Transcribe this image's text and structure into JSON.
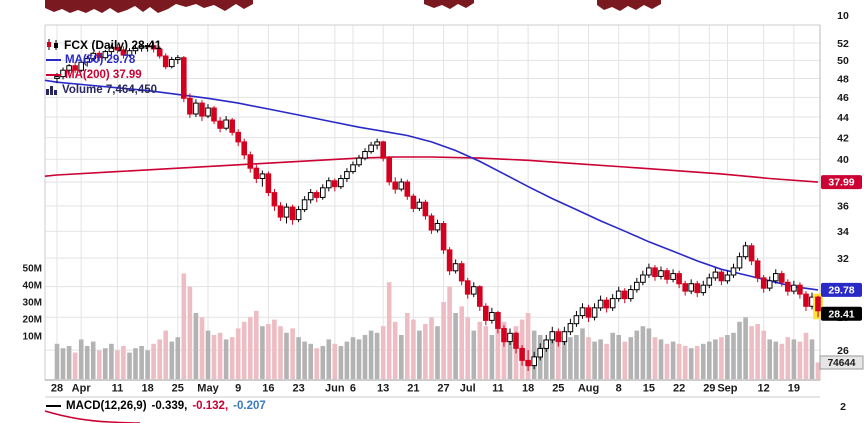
{
  "legend": {
    "symbol": "FCX (Daily) 28.41",
    "ma50": "MA(50) 29.78",
    "ma200": "MA(200) 37.99",
    "volume": "Volume 7,464,450"
  },
  "macd": {
    "label": "MACD(12,26,9)",
    "v1": "-0.339,",
    "v2": "-0.132,",
    "v3": "-0.207"
  },
  "axis": {
    "top_label": "10",
    "price_labels": [
      52,
      50,
      48,
      46,
      44,
      42,
      40,
      38,
      36,
      34,
      32,
      30,
      28,
      26
    ],
    "volume_labels": [
      "50M",
      "40M",
      "30M",
      "20M",
      "10M"
    ],
    "macd_scale_label": "2",
    "last_volume_label": "74644"
  },
  "price_boxes": {
    "ma200": "37.99",
    "ma50": "29.78",
    "last": "28.41"
  },
  "x_axis": {
    "labels": [
      {
        "i": 0,
        "label": "28"
      },
      {
        "i": 4,
        "label": "Apr"
      },
      {
        "i": 10,
        "label": "11"
      },
      {
        "i": 15,
        "label": "18"
      },
      {
        "i": 20,
        "label": "25"
      },
      {
        "i": 25,
        "label": "May"
      },
      {
        "i": 30,
        "label": "9"
      },
      {
        "i": 35,
        "label": "16"
      },
      {
        "i": 40,
        "label": "23"
      },
      {
        "i": 46,
        "label": "Jun"
      },
      {
        "i": 49,
        "label": "6"
      },
      {
        "i": 54,
        "label": "13"
      },
      {
        "i": 59,
        "label": "21"
      },
      {
        "i": 64,
        "label": "27"
      },
      {
        "i": 68,
        "label": "Jul"
      },
      {
        "i": 73,
        "label": "11"
      },
      {
        "i": 78,
        "label": "18"
      },
      {
        "i": 83,
        "label": "25"
      },
      {
        "i": 88,
        "label": "Aug"
      },
      {
        "i": 93,
        "label": "8"
      },
      {
        "i": 98,
        "label": "15"
      },
      {
        "i": 103,
        "label": "22"
      },
      {
        "i": 108,
        "label": "29"
      },
      {
        "i": 111,
        "label": "Sep"
      },
      {
        "i": 117,
        "label": "12"
      },
      {
        "i": 122,
        "label": "19"
      }
    ]
  },
  "colors": {
    "candle_down": "#d4001f",
    "candle_up_fill": "#ffffff",
    "candle_up_stroke": "#000000",
    "ma50": "#2929c8",
    "ma200": "#cc0033",
    "volume_up": "#b3b3b3",
    "volume_down": "#eebcc3",
    "grid": "#e3e3e3",
    "axis_text": "#1a1a1a",
    "legend_volume": "#27275e",
    "last_box_bg": "#000000",
    "ma50_box_bg": "#2929c8",
    "ma200_box_bg": "#cc0033",
    "marker_yellow": "#ffe13a",
    "top_fragment": "#7a1a20",
    "macd_value1": "#000000",
    "macd_value2": "#cc0033",
    "macd_value3": "#3a7abf"
  },
  "chart_data": {
    "type": "candlestick",
    "title": "FCX (Daily) with MA(50), MA(200), Volume and MACD(12,26,9)",
    "symbol": "FCX",
    "timeframe": "Daily",
    "last_price": 28.41,
    "ma50_last": 29.78,
    "ma200_last": 37.99,
    "volume_current": 7464450,
    "price_scale": "log",
    "ylim": [
      25.5,
      53
    ],
    "volume_axis_m": [
      10,
      20,
      30,
      40,
      50
    ],
    "macd_values": [
      -0.339,
      -0.132,
      -0.207
    ],
    "candles": [
      [
        48.0,
        48.6,
        47.5,
        48.2,
        16
      ],
      [
        48.2,
        49.2,
        47.9,
        48.9,
        14
      ],
      [
        48.9,
        49.6,
        48.3,
        49.4,
        15
      ],
      [
        49.4,
        49.8,
        48.6,
        48.9,
        12
      ],
      [
        48.9,
        50.0,
        48.7,
        49.8,
        18
      ],
      [
        49.8,
        50.5,
        49.3,
        50.2,
        15
      ],
      [
        50.2,
        51.0,
        49.9,
        50.8,
        17
      ],
      [
        50.8,
        51.1,
        49.9,
        50.3,
        13
      ],
      [
        50.3,
        51.2,
        50.0,
        51.0,
        14
      ],
      [
        51.0,
        51.8,
        50.6,
        51.5,
        16
      ],
      [
        51.5,
        51.9,
        50.8,
        51.2,
        13
      ],
      [
        51.2,
        51.6,
        50.2,
        50.6,
        15
      ],
      [
        50.6,
        51.4,
        50.4,
        51.1,
        12
      ],
      [
        51.1,
        51.7,
        50.7,
        51.4,
        14
      ],
      [
        51.4,
        51.9,
        51.0,
        51.6,
        15
      ],
      [
        51.6,
        52.0,
        51.0,
        51.7,
        13
      ],
      [
        51.7,
        52.1,
        50.9,
        51.3,
        16
      ],
      [
        51.3,
        51.6,
        50.2,
        50.5,
        18
      ],
      [
        50.5,
        50.8,
        49.0,
        49.3,
        22
      ],
      [
        49.3,
        50.4,
        49.1,
        50.1,
        17
      ],
      [
        50.1,
        50.6,
        49.6,
        50.3,
        19
      ],
      [
        50.3,
        50.5,
        45.5,
        45.9,
        48
      ],
      [
        45.9,
        46.4,
        43.9,
        44.3,
        42
      ],
      [
        44.3,
        45.8,
        44.0,
        45.4,
        30
      ],
      [
        45.4,
        45.7,
        43.6,
        44.1,
        28
      ],
      [
        44.1,
        45.3,
        43.9,
        44.9,
        22
      ],
      [
        44.9,
        45.1,
        43.3,
        43.6,
        20
      ],
      [
        43.6,
        44.0,
        42.5,
        42.9,
        21
      ],
      [
        42.9,
        44.1,
        42.7,
        43.7,
        18
      ],
      [
        43.7,
        43.9,
        42.2,
        42.5,
        19
      ],
      [
        42.5,
        42.8,
        41.2,
        41.6,
        23
      ],
      [
        41.6,
        41.9,
        40.0,
        40.4,
        26
      ],
      [
        40.4,
        40.7,
        38.8,
        39.2,
        28
      ],
      [
        39.2,
        39.5,
        37.9,
        38.3,
        31
      ],
      [
        38.3,
        39.0,
        37.6,
        38.7,
        24
      ],
      [
        38.7,
        38.9,
        36.8,
        37.1,
        25
      ],
      [
        37.1,
        37.4,
        35.6,
        36.0,
        27
      ],
      [
        36.0,
        36.3,
        34.8,
        35.1,
        24
      ],
      [
        35.1,
        36.2,
        34.6,
        35.9,
        21
      ],
      [
        35.9,
        36.1,
        34.5,
        34.9,
        23
      ],
      [
        34.9,
        36.0,
        34.7,
        35.7,
        19
      ],
      [
        35.7,
        36.8,
        35.5,
        36.5,
        17
      ],
      [
        36.5,
        37.4,
        36.2,
        37.1,
        16
      ],
      [
        37.1,
        37.3,
        36.3,
        36.7,
        14
      ],
      [
        36.7,
        37.8,
        36.5,
        37.5,
        15
      ],
      [
        37.5,
        38.4,
        37.2,
        38.1,
        18
      ],
      [
        38.1,
        38.3,
        37.2,
        37.6,
        16
      ],
      [
        37.6,
        38.6,
        37.4,
        38.3,
        15
      ],
      [
        38.3,
        39.2,
        38.0,
        38.9,
        17
      ],
      [
        38.9,
        39.8,
        38.7,
        39.5,
        19
      ],
      [
        39.5,
        40.4,
        39.3,
        40.1,
        18
      ],
      [
        40.1,
        41.0,
        39.9,
        40.7,
        20
      ],
      [
        40.7,
        41.6,
        40.5,
        41.3,
        22
      ],
      [
        41.3,
        41.9,
        40.9,
        41.6,
        21
      ],
      [
        41.6,
        41.7,
        39.8,
        40.1,
        24
      ],
      [
        40.1,
        40.3,
        37.7,
        38.0,
        44
      ],
      [
        38.0,
        38.4,
        37.0,
        37.4,
        26
      ],
      [
        37.4,
        38.3,
        37.2,
        38.0,
        20
      ],
      [
        38.0,
        38.2,
        36.5,
        36.8,
        30
      ],
      [
        36.8,
        37.0,
        35.5,
        35.8,
        27
      ],
      [
        35.8,
        36.6,
        35.6,
        36.3,
        22
      ],
      [
        36.3,
        36.5,
        34.9,
        35.2,
        25
      ],
      [
        35.2,
        35.4,
        33.8,
        34.1,
        28
      ],
      [
        34.1,
        34.9,
        33.9,
        34.6,
        24
      ],
      [
        34.6,
        34.8,
        32.3,
        32.6,
        35
      ],
      [
        32.6,
        32.8,
        30.8,
        31.1,
        42
      ],
      [
        31.1,
        31.9,
        30.9,
        31.6,
        30
      ],
      [
        31.6,
        31.8,
        30.1,
        30.4,
        33
      ],
      [
        30.4,
        30.6,
        29.2,
        29.5,
        28
      ],
      [
        29.5,
        30.3,
        29.3,
        30.0,
        22
      ],
      [
        30.0,
        30.1,
        28.4,
        28.7,
        26
      ],
      [
        28.7,
        28.9,
        27.5,
        27.8,
        24
      ],
      [
        27.8,
        28.6,
        27.6,
        28.3,
        20
      ],
      [
        28.3,
        28.4,
        27.0,
        27.3,
        23
      ],
      [
        27.3,
        27.5,
        26.2,
        26.5,
        26
      ],
      [
        26.5,
        27.3,
        26.3,
        27.0,
        19
      ],
      [
        27.0,
        27.1,
        25.8,
        26.1,
        24
      ],
      [
        26.1,
        26.3,
        25.1,
        25.4,
        27
      ],
      [
        25.4,
        26.0,
        24.8,
        25.1,
        30
      ],
      [
        25.1,
        25.9,
        24.9,
        25.6,
        22
      ],
      [
        25.6,
        26.4,
        25.4,
        26.1,
        20
      ],
      [
        26.1,
        26.9,
        25.9,
        26.6,
        18
      ],
      [
        26.6,
        27.4,
        26.4,
        27.1,
        21
      ],
      [
        27.1,
        27.3,
        26.2,
        26.5,
        17
      ],
      [
        26.5,
        27.4,
        26.3,
        27.1,
        18
      ],
      [
        27.1,
        27.9,
        26.9,
        27.6,
        19
      ],
      [
        27.6,
        28.4,
        27.4,
        28.1,
        20
      ],
      [
        28.1,
        28.9,
        27.9,
        28.6,
        23
      ],
      [
        28.6,
        28.8,
        27.7,
        28.0,
        19
      ],
      [
        28.0,
        28.9,
        27.8,
        28.6,
        17
      ],
      [
        28.6,
        29.4,
        28.4,
        29.1,
        18
      ],
      [
        29.1,
        29.3,
        28.3,
        28.6,
        16
      ],
      [
        28.6,
        29.5,
        28.4,
        29.2,
        21
      ],
      [
        29.2,
        30.0,
        29.0,
        29.7,
        20
      ],
      [
        29.7,
        29.9,
        28.9,
        29.2,
        17
      ],
      [
        29.2,
        30.1,
        29.0,
        29.8,
        19
      ],
      [
        29.8,
        30.6,
        29.6,
        30.3,
        22
      ],
      [
        30.3,
        31.1,
        30.1,
        30.8,
        24
      ],
      [
        30.8,
        31.6,
        30.6,
        31.3,
        23
      ],
      [
        31.3,
        31.5,
        30.4,
        30.7,
        19
      ],
      [
        30.7,
        31.4,
        30.5,
        31.1,
        18
      ],
      [
        31.1,
        31.3,
        30.2,
        30.5,
        16
      ],
      [
        30.5,
        31.2,
        30.3,
        30.9,
        17
      ],
      [
        30.9,
        31.1,
        29.9,
        30.2,
        16
      ],
      [
        30.2,
        30.4,
        29.4,
        29.7,
        15
      ],
      [
        29.7,
        30.5,
        29.5,
        30.2,
        14
      ],
      [
        30.2,
        30.4,
        29.3,
        29.6,
        15
      ],
      [
        29.6,
        30.4,
        29.4,
        30.1,
        16
      ],
      [
        30.1,
        30.9,
        29.9,
        30.6,
        17
      ],
      [
        30.6,
        31.3,
        30.4,
        31.0,
        18
      ],
      [
        31.0,
        31.2,
        30.1,
        30.4,
        19
      ],
      [
        30.4,
        31.1,
        30.2,
        30.8,
        20
      ],
      [
        30.8,
        31.6,
        30.6,
        31.3,
        21
      ],
      [
        31.3,
        32.4,
        31.1,
        32.1,
        26
      ],
      [
        32.1,
        33.2,
        31.9,
        32.9,
        28
      ],
      [
        32.9,
        33.1,
        31.5,
        31.8,
        24
      ],
      [
        31.8,
        32.0,
        30.3,
        30.6,
        25
      ],
      [
        30.6,
        30.8,
        29.6,
        29.9,
        22
      ],
      [
        29.9,
        30.7,
        29.7,
        30.4,
        18
      ],
      [
        30.4,
        31.2,
        30.2,
        30.9,
        17
      ],
      [
        30.9,
        31.1,
        30.0,
        30.3,
        16
      ],
      [
        30.3,
        30.5,
        29.4,
        29.7,
        19
      ],
      [
        29.7,
        30.4,
        29.5,
        30.1,
        18
      ],
      [
        30.1,
        30.3,
        29.2,
        29.5,
        17
      ],
      [
        29.5,
        29.7,
        28.4,
        28.7,
        21
      ],
      [
        28.7,
        29.6,
        28.5,
        29.3,
        18
      ],
      [
        29.3,
        29.4,
        28.0,
        28.41,
        7.5
      ]
    ],
    "ma50_points": [
      [
        -2,
        47.8
      ],
      [
        0,
        47.6
      ],
      [
        5,
        47.3
      ],
      [
        10,
        47.0
      ],
      [
        15,
        46.7
      ],
      [
        20,
        46.3
      ],
      [
        25,
        45.9
      ],
      [
        30,
        45.4
      ],
      [
        35,
        44.8
      ],
      [
        40,
        44.2
      ],
      [
        45,
        43.6
      ],
      [
        50,
        43.0
      ],
      [
        54,
        42.6
      ],
      [
        58,
        42.2
      ],
      [
        62,
        41.6
      ],
      [
        66,
        40.8
      ],
      [
        70,
        39.8
      ],
      [
        74,
        38.7
      ],
      [
        78,
        37.6
      ],
      [
        82,
        36.6
      ],
      [
        86,
        35.7
      ],
      [
        90,
        34.8
      ],
      [
        94,
        34.0
      ],
      [
        98,
        33.2
      ],
      [
        102,
        32.5
      ],
      [
        106,
        31.8
      ],
      [
        110,
        31.2
      ],
      [
        114,
        30.8
      ],
      [
        118,
        30.4
      ],
      [
        122,
        30.0
      ],
      [
        126,
        29.78
      ]
    ],
    "ma200_points": [
      [
        -2,
        38.5
      ],
      [
        0,
        38.6
      ],
      [
        10,
        38.9
      ],
      [
        20,
        39.2
      ],
      [
        30,
        39.5
      ],
      [
        40,
        39.8
      ],
      [
        50,
        40.1
      ],
      [
        56,
        40.2
      ],
      [
        62,
        40.2
      ],
      [
        70,
        40.1
      ],
      [
        78,
        39.9
      ],
      [
        86,
        39.6
      ],
      [
        94,
        39.3
      ],
      [
        102,
        39.0
      ],
      [
        110,
        38.7
      ],
      [
        118,
        38.3
      ],
      [
        126,
        37.99
      ]
    ]
  }
}
